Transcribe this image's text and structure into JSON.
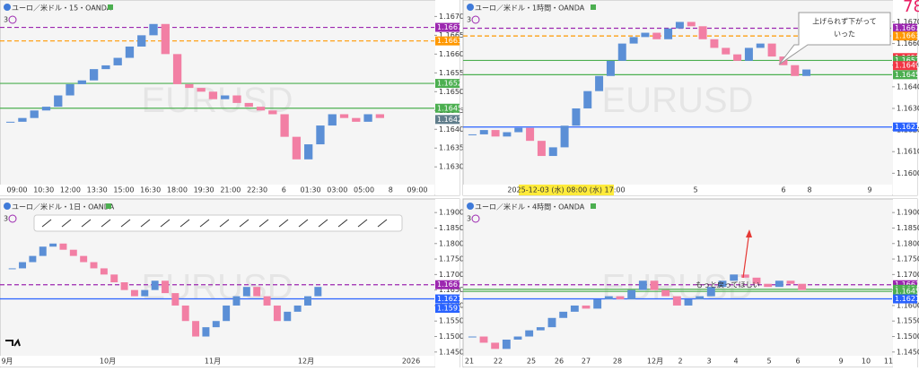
{
  "panels": [
    {
      "title": "ユーロ／米ドル・15・OANDA",
      "indicator": "3",
      "watermark": "EURUSD",
      "ylim": [
        1.1626,
        1.1672
      ],
      "price_ticks": [
        {
          "value": 1.167,
          "label": "1.16700"
        },
        {
          "value": 1.1665,
          "label": "1.16650"
        },
        {
          "value": 1.166,
          "label": "1.16600"
        },
        {
          "value": 1.1655,
          "label": "1.16550"
        },
        {
          "value": 1.165,
          "label": "1.16500"
        },
        {
          "value": 1.1645,
          "label": "1.16450"
        },
        {
          "value": 1.164,
          "label": "1.16400"
        },
        {
          "value": 1.1635,
          "label": "1.16350"
        },
        {
          "value": 1.163,
          "label": "1.16300"
        }
      ],
      "price_tags": [
        {
          "value": 1.16671,
          "color": "#9c27b0",
          "line": "dashed"
        },
        {
          "value": 1.16635,
          "color": "#ff9800",
          "line": "dashed"
        },
        {
          "value": 1.16522,
          "color": "#4caf50",
          "line": "solid"
        },
        {
          "value": 1.16456,
          "color": "#4caf50",
          "line": "solid"
        },
        {
          "value": 1.16426,
          "color": "#607d8b"
        }
      ],
      "time_labels": [
        "09:00",
        "10:30",
        "12:00",
        "13:30",
        "15:00",
        "16:30",
        "18:00",
        "19:30",
        "21:00",
        "22:30",
        "6",
        "01:30",
        "03:00",
        "05:00",
        "8",
        "09:00"
      ],
      "closes": [
        1.1642,
        1.1643,
        1.1645,
        1.1646,
        1.1649,
        1.1652,
        1.1653,
        1.1656,
        1.1657,
        1.1659,
        1.1662,
        1.1665,
        1.1668,
        1.166,
        1.1652,
        1.1651,
        1.165,
        1.1648,
        1.1649,
        1.1647,
        1.1646,
        1.1645,
        1.1644,
        1.1638,
        1.1632,
        1.1636,
        1.1641,
        1.1644,
        1.1643,
        1.1642,
        1.1644,
        1.1643
      ]
    },
    {
      "title": "ユーロ／米ドル・1時間・OANDA",
      "indicator": "3",
      "watermark": "EURUSD",
      "ylim": [
        1.1596,
        1.1676
      ],
      "price_ticks": [
        {
          "value": 1.167,
          "label": "1.16700"
        },
        {
          "value": 1.166,
          "label": "1.16600"
        },
        {
          "value": 1.165,
          "label": "1.16500"
        },
        {
          "value": 1.164,
          "label": "1.16400"
        },
        {
          "value": 1.163,
          "label": "1.16300"
        },
        {
          "value": 1.162,
          "label": "1.16200"
        },
        {
          "value": 1.161,
          "label": "1.16100"
        },
        {
          "value": 1.16,
          "label": "1.16000"
        }
      ],
      "price_tags": [
        {
          "value": 1.16671,
          "color": "#9c27b0",
          "line": "dashed"
        },
        {
          "value": 1.16635,
          "color": "#ff9800",
          "line": "dashed"
        },
        {
          "value": 1.16535,
          "color": "#f23645"
        },
        {
          "value": 1.16522,
          "color": "#4caf50",
          "line": "solid"
        },
        {
          "value": 1.16498,
          "color": "#f23645"
        },
        {
          "value": 1.16456,
          "color": "#4caf50",
          "line": "solid"
        },
        {
          "value": 1.16214,
          "color": "#2962ff",
          "line": "solid"
        }
      ],
      "cursor_time": "2025-12-03 (水)  08:00 (水)  17:00",
      "time_labels": [
        "5",
        "6",
        "8",
        "9"
      ],
      "annotation": [
        "上げられず下がって",
        "いった"
      ],
      "corner_text": "78",
      "closes": [
        1.1618,
        1.162,
        1.1617,
        1.1619,
        1.1621,
        1.1615,
        1.1608,
        1.1612,
        1.1622,
        1.163,
        1.1638,
        1.1645,
        1.1652,
        1.166,
        1.1663,
        1.1665,
        1.1662,
        1.1667,
        1.167,
        1.1668,
        1.1662,
        1.1658,
        1.1655,
        1.1652,
        1.1658,
        1.166,
        1.1654,
        1.165,
        1.1645,
        1.1648
      ]
    },
    {
      "title": "ユーロ／米ドル・1日・OANDA",
      "indicator": "3",
      "watermark": "EURUSD",
      "ylim": [
        1.1435,
        1.1915
      ],
      "price_ticks": [
        {
          "value": 1.19,
          "label": "1.19000"
        },
        {
          "value": 1.185,
          "label": "1.18500"
        },
        {
          "value": 1.18,
          "label": "1.18000"
        },
        {
          "value": 1.175,
          "label": "1.17500"
        },
        {
          "value": 1.17,
          "label": "1.17000"
        },
        {
          "value": 1.165,
          "label": "1.16500"
        },
        {
          "value": 1.16,
          "label": "1.16000"
        },
        {
          "value": 1.155,
          "label": "1.15500"
        },
        {
          "value": 1.15,
          "label": "1.15000"
        },
        {
          "value": 1.145,
          "label": "1.14500"
        }
      ],
      "price_tags": [
        {
          "value": 1.16671,
          "color": "#9c27b0",
          "line": "dashed"
        },
        {
          "value": 1.16214,
          "color": "#2962ff",
          "line": "solid"
        },
        {
          "value": 1.1591,
          "color": "#2962ff"
        }
      ],
      "time_labels": [
        "9月",
        "10月",
        "11月",
        "12月",
        "2026"
      ],
      "closes": [
        1.172,
        1.174,
        1.176,
        1.179,
        1.18,
        1.178,
        1.176,
        1.174,
        1.172,
        1.17,
        1.1675,
        1.165,
        1.163,
        1.165,
        1.168,
        1.164,
        1.16,
        1.155,
        1.15,
        1.153,
        1.155,
        1.16,
        1.163,
        1.166,
        1.163,
        1.16,
        1.155,
        1.158,
        1.16,
        1.163,
        1.166
      ]
    },
    {
      "title": "ユーロ／米ドル・4時間・OANDA",
      "indicator": "3",
      "watermark": "EURUSD",
      "ylim": [
        1.1435,
        1.1915
      ],
      "price_ticks": [
        {
          "value": 1.19,
          "label": "1.19000"
        },
        {
          "value": 1.185,
          "label": "1.18500"
        },
        {
          "value": 1.18,
          "label": "1.18000"
        },
        {
          "value": 1.175,
          "label": "1.17500"
        },
        {
          "value": 1.17,
          "label": "1.17000"
        },
        {
          "value": 1.165,
          "label": "1.16500"
        },
        {
          "value": 1.16,
          "label": "1.16000"
        },
        {
          "value": 1.155,
          "label": "1.15500"
        },
        {
          "value": 1.15,
          "label": "1.15000"
        },
        {
          "value": 1.145,
          "label": "1.14500"
        }
      ],
      "price_tags": [
        {
          "value": 1.16671,
          "color": "#9c27b0",
          "line": "dashed"
        },
        {
          "value": 1.16522,
          "color": "#4caf50",
          "line": "solid"
        },
        {
          "value": 1.16519,
          "color": "#4caf50"
        },
        {
          "value": 1.16456,
          "color": "#4caf50",
          "line": "solid"
        },
        {
          "value": 1.16214,
          "color": "#2962ff",
          "line": "solid"
        }
      ],
      "time_labels": [
        "21",
        "22",
        "25",
        "26",
        "27",
        "28",
        "12月",
        "2",
        "3",
        "4",
        "5",
        "6",
        "9",
        "10",
        "11"
      ],
      "annotation": [
        "もっと戻ってほしい"
      ],
      "closes": [
        1.15,
        1.148,
        1.146,
        1.149,
        1.15,
        1.152,
        1.153,
        1.156,
        1.158,
        1.16,
        1.159,
        1.162,
        1.163,
        1.162,
        1.165,
        1.168,
        1.165,
        1.163,
        1.16,
        1.162,
        1.163,
        1.166,
        1.168,
        1.17,
        1.169,
        1.167,
        1.166,
        1.168,
        1.167,
        1.165
      ]
    }
  ]
}
